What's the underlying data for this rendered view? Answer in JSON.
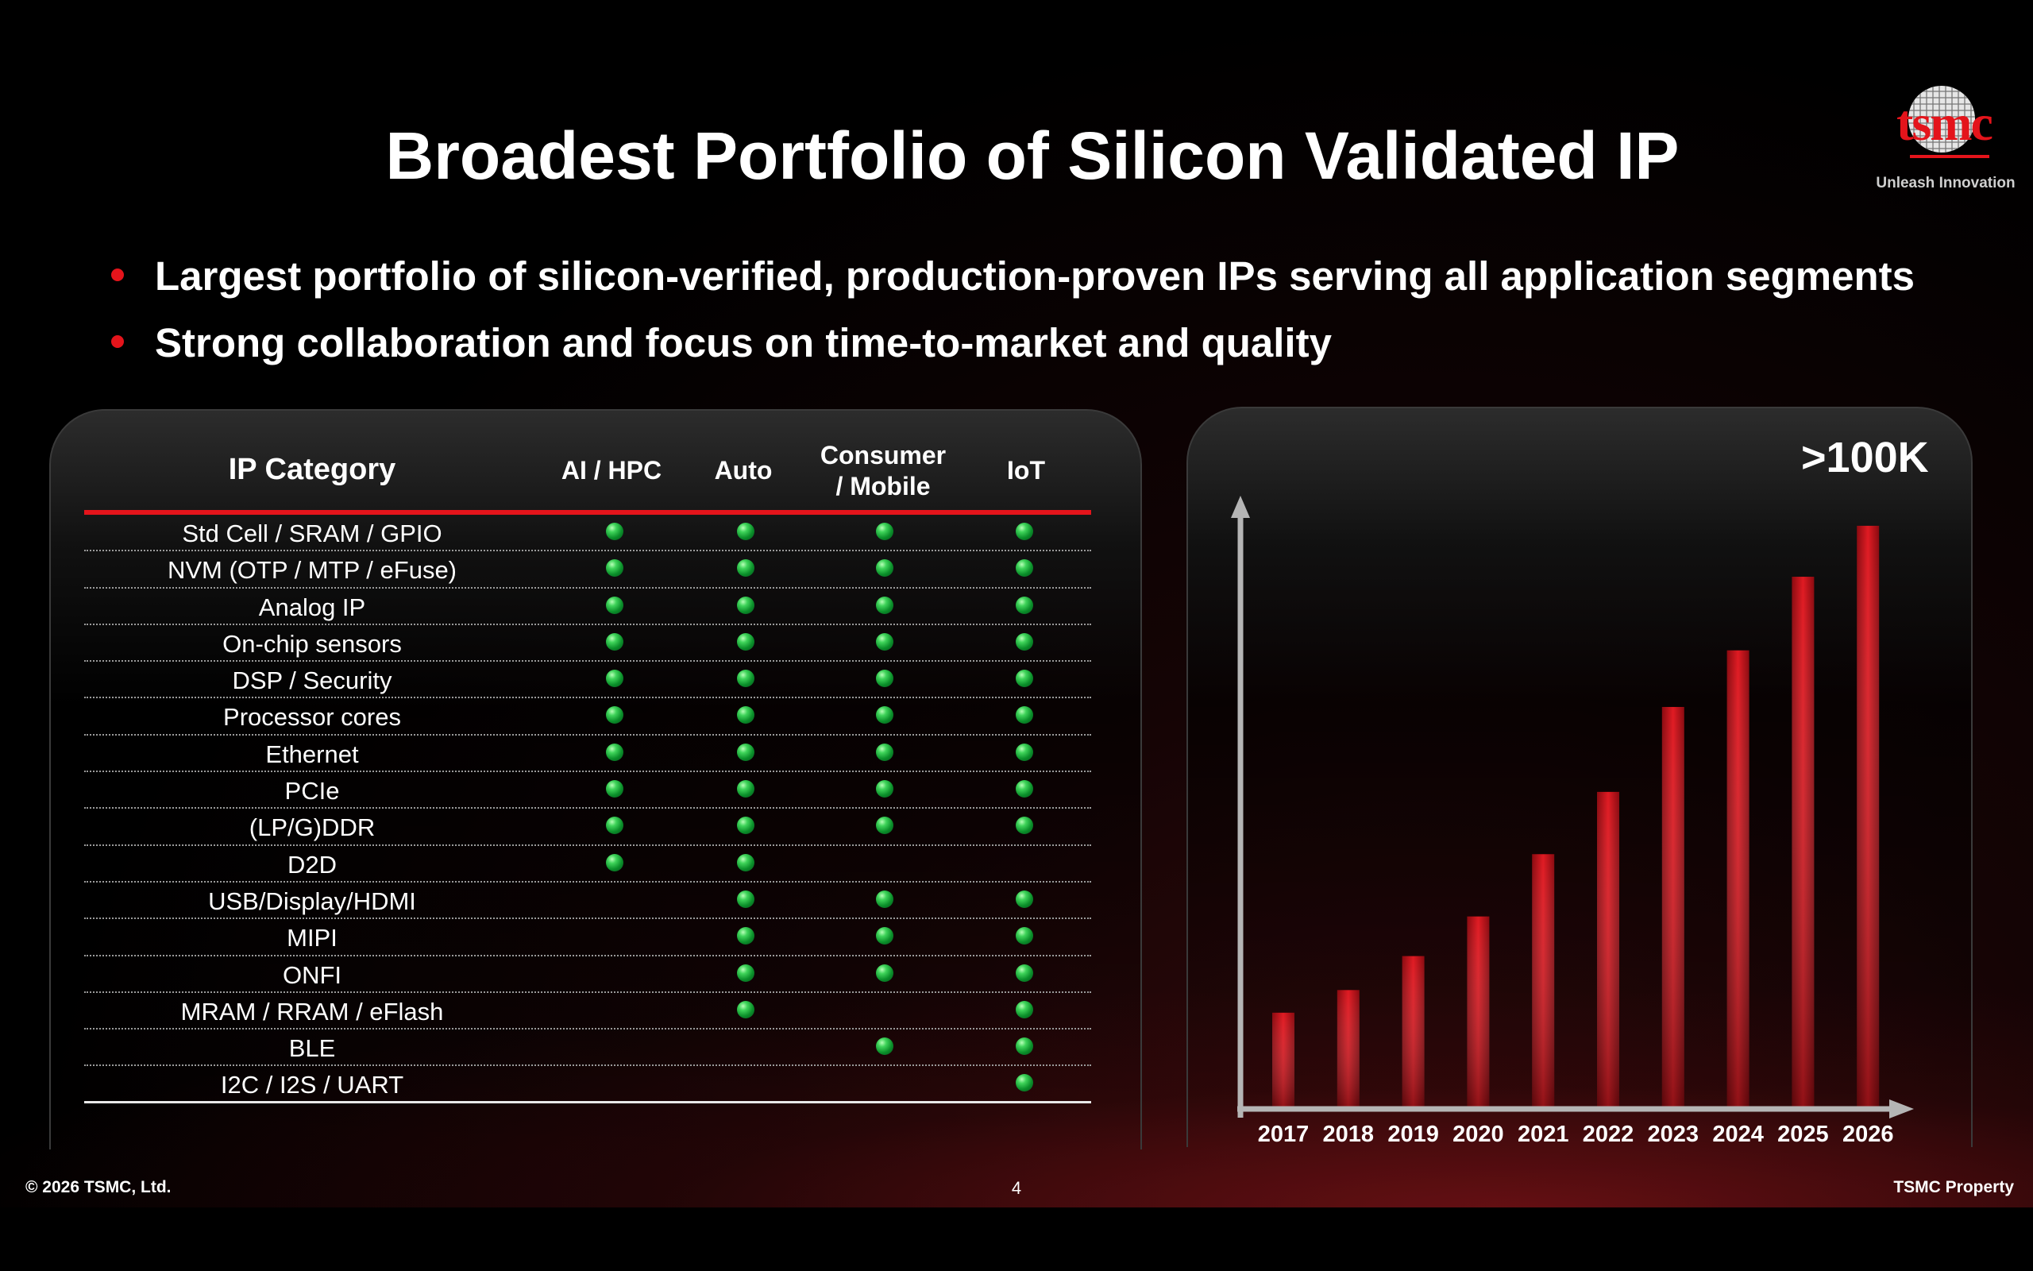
{
  "slide": {
    "title": "Broadest Portfolio of Silicon Validated IP",
    "logo": {
      "text": "tsmc",
      "tagline": "Unleash Innovation"
    },
    "bullets": [
      "Largest portfolio of silicon-verified, production-proven IPs serving all application segments",
      "Strong collaboration and focus on time-to-market and quality"
    ]
  },
  "table": {
    "headers": {
      "category": "IP Category",
      "ai_hpc": "AI / HPC",
      "auto": "Auto",
      "consumer_line1": "Consumer",
      "consumer_line2": "/ Mobile",
      "iot": "IoT"
    },
    "rows": [
      {
        "category": "Std Cell / SRAM / GPIO",
        "ai_hpc": true,
        "auto": true,
        "consumer": true,
        "iot": true
      },
      {
        "category": "NVM (OTP / MTP / eFuse)",
        "ai_hpc": true,
        "auto": true,
        "consumer": true,
        "iot": true
      },
      {
        "category": "Analog IP",
        "ai_hpc": true,
        "auto": true,
        "consumer": true,
        "iot": true
      },
      {
        "category": "On-chip sensors",
        "ai_hpc": true,
        "auto": true,
        "consumer": true,
        "iot": true
      },
      {
        "category": "DSP / Security",
        "ai_hpc": true,
        "auto": true,
        "consumer": true,
        "iot": true
      },
      {
        "category": "Processor cores",
        "ai_hpc": true,
        "auto": true,
        "consumer": true,
        "iot": true
      },
      {
        "category": "Ethernet",
        "ai_hpc": true,
        "auto": true,
        "consumer": true,
        "iot": true
      },
      {
        "category": "PCIe",
        "ai_hpc": true,
        "auto": true,
        "consumer": true,
        "iot": true
      },
      {
        "category": "(LP/G)DDR",
        "ai_hpc": true,
        "auto": true,
        "consumer": true,
        "iot": true
      },
      {
        "category": "D2D",
        "ai_hpc": true,
        "auto": true,
        "consumer": false,
        "iot": false
      },
      {
        "category": "USB/Display/HDMI",
        "ai_hpc": false,
        "auto": true,
        "consumer": true,
        "iot": true
      },
      {
        "category": "MIPI",
        "ai_hpc": false,
        "auto": true,
        "consumer": true,
        "iot": true
      },
      {
        "category": "ONFI",
        "ai_hpc": false,
        "auto": true,
        "consumer": true,
        "iot": true
      },
      {
        "category": "MRAM / RRAM / eFlash",
        "ai_hpc": false,
        "auto": true,
        "consumer": false,
        "iot": true
      },
      {
        "category": "BLE",
        "ai_hpc": false,
        "auto": false,
        "consumer": true,
        "iot": true
      },
      {
        "category": "I2C / I2S / UART",
        "ai_hpc": false,
        "auto": false,
        "consumer": false,
        "iot": true
      }
    ]
  },
  "chart_data": {
    "type": "bar",
    "title": "",
    "annotation": ">100K",
    "categories": [
      "2017",
      "2018",
      "2019",
      "2020",
      "2021",
      "2022",
      "2023",
      "2024",
      "2025",
      "2026"
    ],
    "values": [
      17,
      21,
      27,
      34,
      45,
      56,
      71,
      81,
      94,
      103
    ],
    "ylim": [
      0,
      110
    ],
    "xlabel": "",
    "ylabel": "",
    "grid": false,
    "bar_color": "#d9141b"
  },
  "footer": {
    "copyright": "© 2026 TSMC, Ltd.",
    "page": "4",
    "property": "TSMC Property"
  }
}
